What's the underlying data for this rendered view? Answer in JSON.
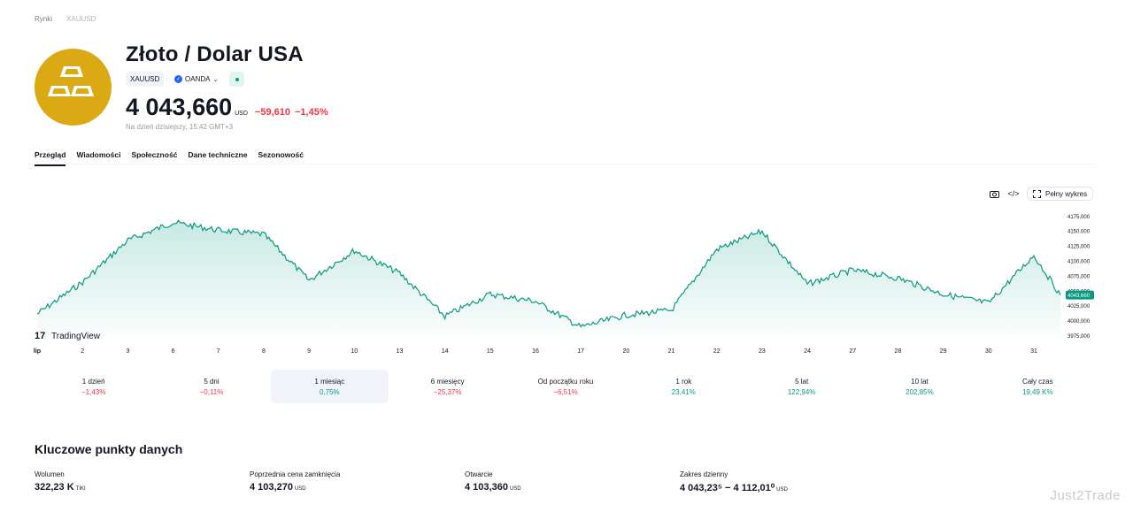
{
  "breadcrumb": [
    "Rynki",
    "XAUUSD"
  ],
  "header": {
    "title": "Złoto / Dolar USA",
    "symbol": "XAUUSD",
    "exchange": "OANDA",
    "price": "4 043,660",
    "currency": "USD",
    "change": "−59,610",
    "change_pct": "−1,45%",
    "as_of": "Na dzień dzisiejszy, 15:42 GMT+3",
    "colors": {
      "gold": "#dba913",
      "negative": "#f23645",
      "positive": "#089981",
      "status": "#089981"
    }
  },
  "tabs": [
    "Przegląd",
    "Wiadomości",
    "Społeczność",
    "Dane techniczne",
    "Sezonowość"
  ],
  "chart_tools": {
    "screenshot_icon": "camera-icon",
    "embed_icon": "code-icon",
    "full_label": "Pełny wykres"
  },
  "chart_data": {
    "type": "area",
    "brand": "TradingView",
    "x_ticks": [
      "lip",
      "2",
      "3",
      "6",
      "7",
      "8",
      "9",
      "10",
      "13",
      "14",
      "15",
      "16",
      "17",
      "20",
      "21",
      "22",
      "23",
      "24",
      "27",
      "28",
      "29",
      "30",
      "31"
    ],
    "y_ticks": [
      "4175,000",
      "4150,000",
      "4125,000",
      "4100,000",
      "4075,000",
      "4050,000",
      "4025,000",
      "4000,000",
      "3975,000"
    ],
    "ylim": [
      3975,
      4185
    ],
    "last_label": "4043,660",
    "x": [
      "lip",
      "2",
      "3",
      "6",
      "7",
      "8",
      "9",
      "10",
      "13",
      "14",
      "15",
      "16",
      "17",
      "20",
      "21",
      "22",
      "23",
      "24",
      "27",
      "28",
      "29",
      "30",
      "31",
      "31"
    ],
    "values": [
      4012,
      4065,
      4135,
      4165,
      4152,
      4145,
      4068,
      4118,
      4080,
      4008,
      4045,
      4033,
      3990,
      4010,
      4018,
      4120,
      4150,
      4062,
      4085,
      4072,
      4045,
      4030,
      4110,
      4043.66
    ],
    "color": "#089981"
  },
  "periods": [
    {
      "label": "1 dzień",
      "value": "−1,43%",
      "sign": "neg"
    },
    {
      "label": "5 dni",
      "value": "−0,11%",
      "sign": "neg"
    },
    {
      "label": "1 miesiąc",
      "value": "0,75%",
      "sign": "pos"
    },
    {
      "label": "6 miesięcy",
      "value": "−25,37%",
      "sign": "neg"
    },
    {
      "label": "Od początku roku",
      "value": "−6,51%",
      "sign": "neg"
    },
    {
      "label": "1 rok",
      "value": "23,41%",
      "sign": "pos"
    },
    {
      "label": "5 lat",
      "value": "122,94%",
      "sign": "pos"
    },
    {
      "label": "10 lat",
      "value": "202,85%",
      "sign": "pos"
    },
    {
      "label": "Cały czas",
      "value": "19,49 K%",
      "sign": "pos"
    }
  ],
  "key_points": {
    "title": "Kluczowe punkty danych",
    "volume": {
      "label": "Wolumen",
      "value": "322,23 K",
      "unit": "TIKI"
    },
    "prev_close": {
      "label": "Poprzednia cena zamknięcia",
      "value": "4 103,270",
      "unit": "USD"
    },
    "open": {
      "label": "Otwarcie",
      "value": "4 103,360",
      "unit": "USD"
    },
    "range": {
      "label": "Zakres dzienny",
      "value": "4 043,23⁵ − 4 112,01⁰",
      "unit": "USD"
    }
  },
  "watermark": "Just2Trade"
}
